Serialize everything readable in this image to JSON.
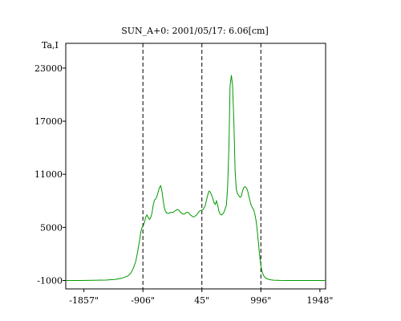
{
  "chart_data": {
    "type": "line",
    "title": "SUN_A+0: 2001/05/17: 6.06[cm]",
    "ylabel": "Ta,I",
    "xlabel": "",
    "xlim": [
      -2150,
      2040
    ],
    "ylim": [
      -1950,
      25800
    ],
    "x_ticks": [
      -1857,
      -906,
      45,
      996,
      1948
    ],
    "x_tick_labels": [
      "-1857\"",
      "-906\"",
      "45\"",
      "996\"",
      "1948\""
    ],
    "y_ticks": [
      -1000,
      5000,
      11000,
      17000,
      23000
    ],
    "y_tick_labels": [
      "-1000",
      "5000",
      "11000",
      "17000",
      "23000"
    ],
    "vlines": [
      -906,
      45,
      996
    ],
    "grid": false,
    "series": [
      {
        "color": "#009900",
        "x": [
          -2150,
          -1900,
          -1700,
          -1500,
          -1350,
          -1250,
          -1150,
          -1100,
          -1060,
          -1020,
          -990,
          -960,
          -940,
          -920,
          -900,
          -880,
          -860,
          -840,
          -820,
          -800,
          -780,
          -760,
          -740,
          -720,
          -700,
          -680,
          -660,
          -640,
          -620,
          -600,
          -580,
          -560,
          -540,
          -520,
          -500,
          -480,
          -460,
          -440,
          -420,
          -400,
          -380,
          -360,
          -340,
          -320,
          -300,
          -280,
          -260,
          -240,
          -220,
          -200,
          -180,
          -160,
          -140,
          -120,
          -100,
          -80,
          -60,
          -40,
          -20,
          0,
          20,
          40,
          60,
          80,
          100,
          120,
          140,
          160,
          180,
          200,
          220,
          240,
          260,
          280,
          300,
          320,
          340,
          360,
          380,
          400,
          420,
          440,
          460,
          480,
          500,
          520,
          540,
          560,
          580,
          600,
          620,
          640,
          660,
          680,
          700,
          720,
          740,
          760,
          780,
          800,
          820,
          840,
          860,
          880,
          900,
          920,
          940,
          960,
          980,
          1000,
          1020,
          1040,
          1070,
          1100,
          1150,
          1200,
          1300,
          1450,
          1650,
          1850,
          2040
        ],
        "y": [
          -1000,
          -1000,
          -970,
          -950,
          -870,
          -750,
          -500,
          -150,
          400,
          1200,
          2300,
          3500,
          4500,
          5000,
          5200,
          5600,
          6200,
          6400,
          6100,
          5900,
          6100,
          6600,
          7500,
          8100,
          8200,
          8500,
          9000,
          9500,
          9700,
          9100,
          8100,
          7200,
          6800,
          6600,
          6600,
          6600,
          6700,
          6700,
          6700,
          6800,
          6900,
          7000,
          7000,
          6900,
          6700,
          6600,
          6500,
          6500,
          6600,
          6700,
          6700,
          6600,
          6400,
          6300,
          6200,
          6200,
          6300,
          6400,
          6600,
          6800,
          6900,
          6900,
          7000,
          7200,
          7500,
          8100,
          8700,
          9100,
          9000,
          8700,
          8300,
          7800,
          7600,
          8000,
          7500,
          6800,
          6500,
          6400,
          6500,
          6700,
          7100,
          7500,
          9500,
          14000,
          21000,
          22200,
          21000,
          17000,
          11500,
          9300,
          8800,
          8600,
          8400,
          8500,
          9100,
          9500,
          9600,
          9500,
          9200,
          8600,
          8000,
          7500,
          7200,
          7000,
          6500,
          5700,
          4500,
          3000,
          1600,
          500,
          -100,
          -450,
          -700,
          -830,
          -920,
          -960,
          -990,
          -1000,
          -1000,
          -1000,
          -1000
        ]
      }
    ]
  }
}
